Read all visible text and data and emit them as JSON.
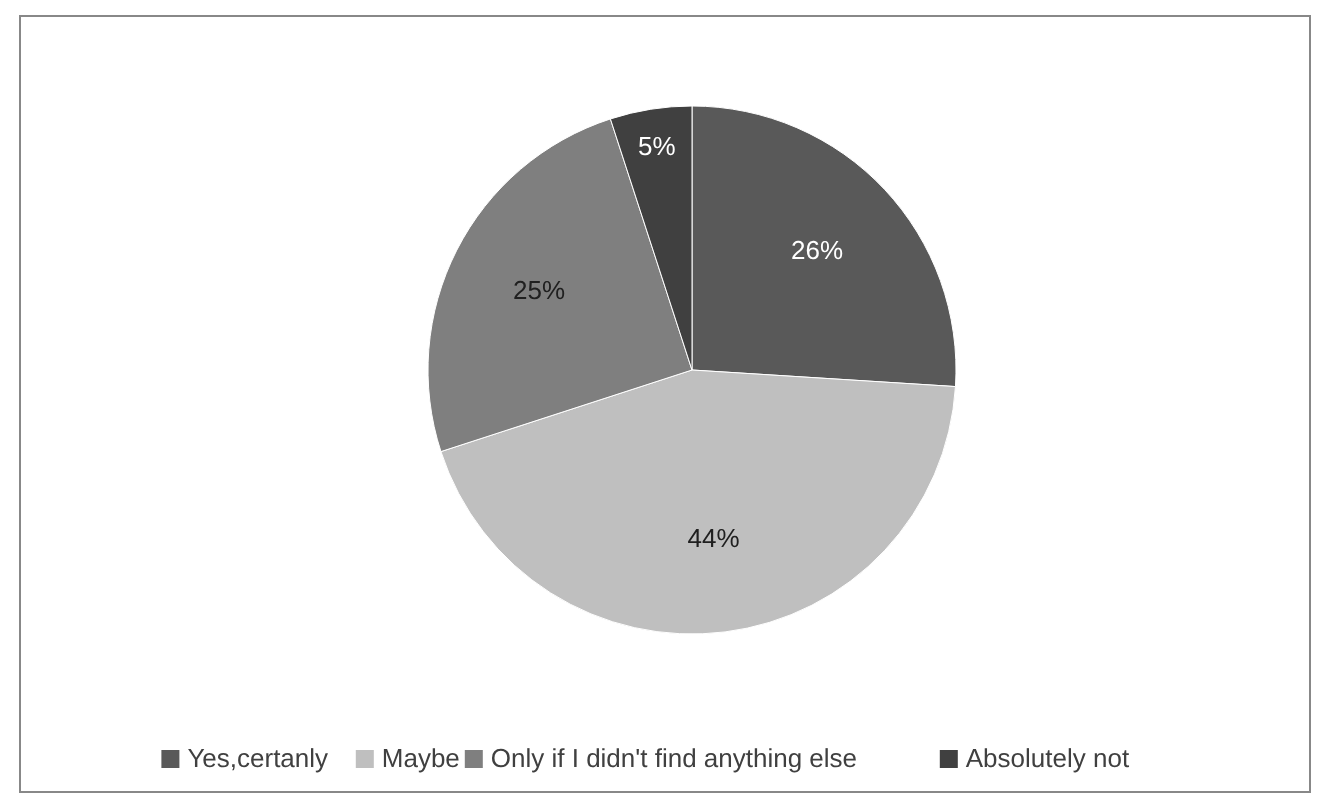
{
  "chart_data": {
    "type": "pie",
    "categories": [
      "Yes,certanly",
      "Maybe",
      "Only if I didn't find anything else",
      "Absolutely not"
    ],
    "values": [
      26,
      44,
      25,
      5
    ],
    "colors": [
      "#595959",
      "#bfbfbf",
      "#7f7f7f",
      "#404040"
    ],
    "value_labels": [
      "26%",
      "44%",
      "25%",
      "5%"
    ],
    "legend": "bottom"
  }
}
